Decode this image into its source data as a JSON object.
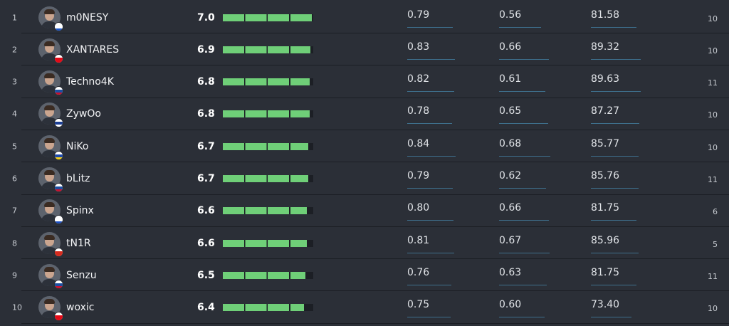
{
  "rows": [
    {
      "rank": "1",
      "name": "m0NESY",
      "rating": "7.0",
      "rating_value": 7.0,
      "stat1": "0.79",
      "stat2": "0.56",
      "stat3": "81.58",
      "maps": "10",
      "flag_colors": [
        "#ffffff",
        "#1c57c9",
        "#d52b1e"
      ]
    },
    {
      "rank": "2",
      "name": "XANTARES",
      "rating": "6.9",
      "rating_value": 6.9,
      "stat1": "0.83",
      "stat2": "0.66",
      "stat3": "89.32",
      "maps": "10",
      "flag_colors": [
        "#e30a17",
        "#e30a17",
        "#e30a17"
      ]
    },
    {
      "rank": "3",
      "name": "Techno4K",
      "rating": "6.8",
      "rating_value": 6.8,
      "stat1": "0.82",
      "stat2": "0.61",
      "stat3": "89.63",
      "maps": "11",
      "flag_colors": [
        "#1d4fa0",
        "#c8102e",
        "#1d4fa0"
      ]
    },
    {
      "rank": "4",
      "name": "ZywOo",
      "rating": "6.8",
      "rating_value": 6.8,
      "stat1": "0.78",
      "stat2": "0.65",
      "stat3": "87.27",
      "maps": "10",
      "flag_colors": [
        "#1c3f95",
        "#ffffff",
        "#e1242b"
      ]
    },
    {
      "rank": "5",
      "name": "NiKo",
      "rating": "6.7",
      "rating_value": 6.7,
      "stat1": "0.84",
      "stat2": "0.68",
      "stat3": "85.77",
      "maps": "10",
      "flag_colors": [
        "#1f4aa8",
        "#f7d117",
        "#1f4aa8"
      ]
    },
    {
      "rank": "6",
      "name": "bLitz",
      "rating": "6.7",
      "rating_value": 6.7,
      "stat1": "0.79",
      "stat2": "0.62",
      "stat3": "85.76",
      "maps": "11",
      "flag_colors": [
        "#1d4fa0",
        "#c8102e",
        "#1d4fa0"
      ]
    },
    {
      "rank": "7",
      "name": "Spinx",
      "rating": "6.6",
      "rating_value": 6.6,
      "stat1": "0.80",
      "stat2": "0.66",
      "stat3": "81.75",
      "maps": "6",
      "flag_colors": [
        "#ffffff",
        "#1a4fc4",
        "#ffffff"
      ]
    },
    {
      "rank": "8",
      "name": "tN1R",
      "rating": "6.6",
      "rating_value": 6.6,
      "stat1": "0.81",
      "stat2": "0.67",
      "stat3": "85.96",
      "maps": "5",
      "flag_colors": [
        "#d52b1e",
        "#d52b1e",
        "#d52b1e"
      ]
    },
    {
      "rank": "9",
      "name": "Senzu",
      "rating": "6.5",
      "rating_value": 6.5,
      "stat1": "0.76",
      "stat2": "0.63",
      "stat3": "81.75",
      "maps": "11",
      "flag_colors": [
        "#1d4fa0",
        "#c8102e",
        "#1d4fa0"
      ]
    },
    {
      "rank": "10",
      "name": "woxic",
      "rating": "6.4",
      "rating_value": 6.4,
      "stat1": "0.75",
      "stat2": "0.60",
      "stat3": "73.40",
      "maps": "10",
      "flag_colors": [
        "#e30a17",
        "#e30a17",
        "#e30a17"
      ]
    }
  ],
  "colors": {
    "bar_fill": "#6fcf78",
    "bar_track": "#1c1f25",
    "underline": "#3e6f8c",
    "background": "#2b2f37"
  },
  "icons": {
    "avatar": "player-avatar-icon",
    "flag": "country-flag-icon"
  }
}
